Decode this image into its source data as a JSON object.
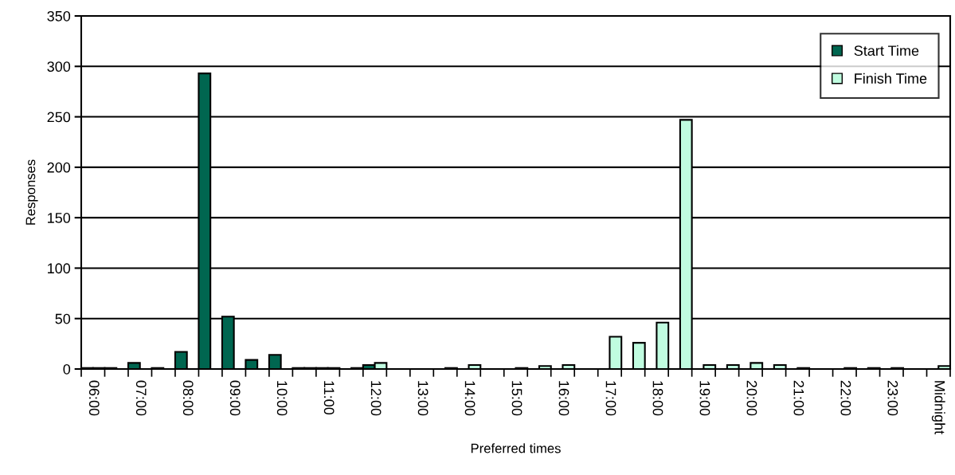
{
  "chart_data": {
    "type": "bar",
    "xlabel": "Preferred times",
    "ylabel": "Responses",
    "categories": [
      "06:00",
      null,
      "07:00",
      null,
      "08:00",
      null,
      "09:00",
      null,
      "10:00",
      null,
      "11:00",
      null,
      "12:00",
      null,
      "13:00",
      null,
      "14:00",
      null,
      "15:00",
      null,
      "16:00",
      null,
      "17:00",
      null,
      "18:00",
      null,
      "19:00",
      null,
      "20:00",
      null,
      "21:00",
      null,
      "22:00",
      null,
      "23:00",
      null,
      "Midnight"
    ],
    "series": [
      {
        "name": "Start Time",
        "color": "#006650",
        "values": [
          1,
          1,
          6,
          1,
          17,
          293,
          52,
          9,
          14,
          1,
          1,
          null,
          4,
          null,
          null,
          null,
          null,
          null,
          null,
          null,
          null,
          null,
          null,
          null,
          null,
          null,
          null,
          null,
          null,
          null,
          null,
          null,
          null,
          null,
          null,
          null,
          null
        ]
      },
      {
        "name": "Finish Time",
        "color": "#c0fce0",
        "values": [
          1,
          null,
          null,
          null,
          null,
          null,
          null,
          null,
          null,
          1,
          1,
          1,
          6,
          null,
          null,
          1,
          4,
          null,
          1,
          3,
          4,
          null,
          32,
          26,
          46,
          247,
          4,
          4,
          6,
          4,
          1,
          null,
          1,
          1,
          1,
          null,
          3
        ]
      }
    ],
    "ylim": [
      0,
      350
    ],
    "yticks": [
      0,
      50,
      100,
      150,
      200,
      250,
      300,
      350
    ],
    "grid": "y",
    "legend": "top right"
  }
}
